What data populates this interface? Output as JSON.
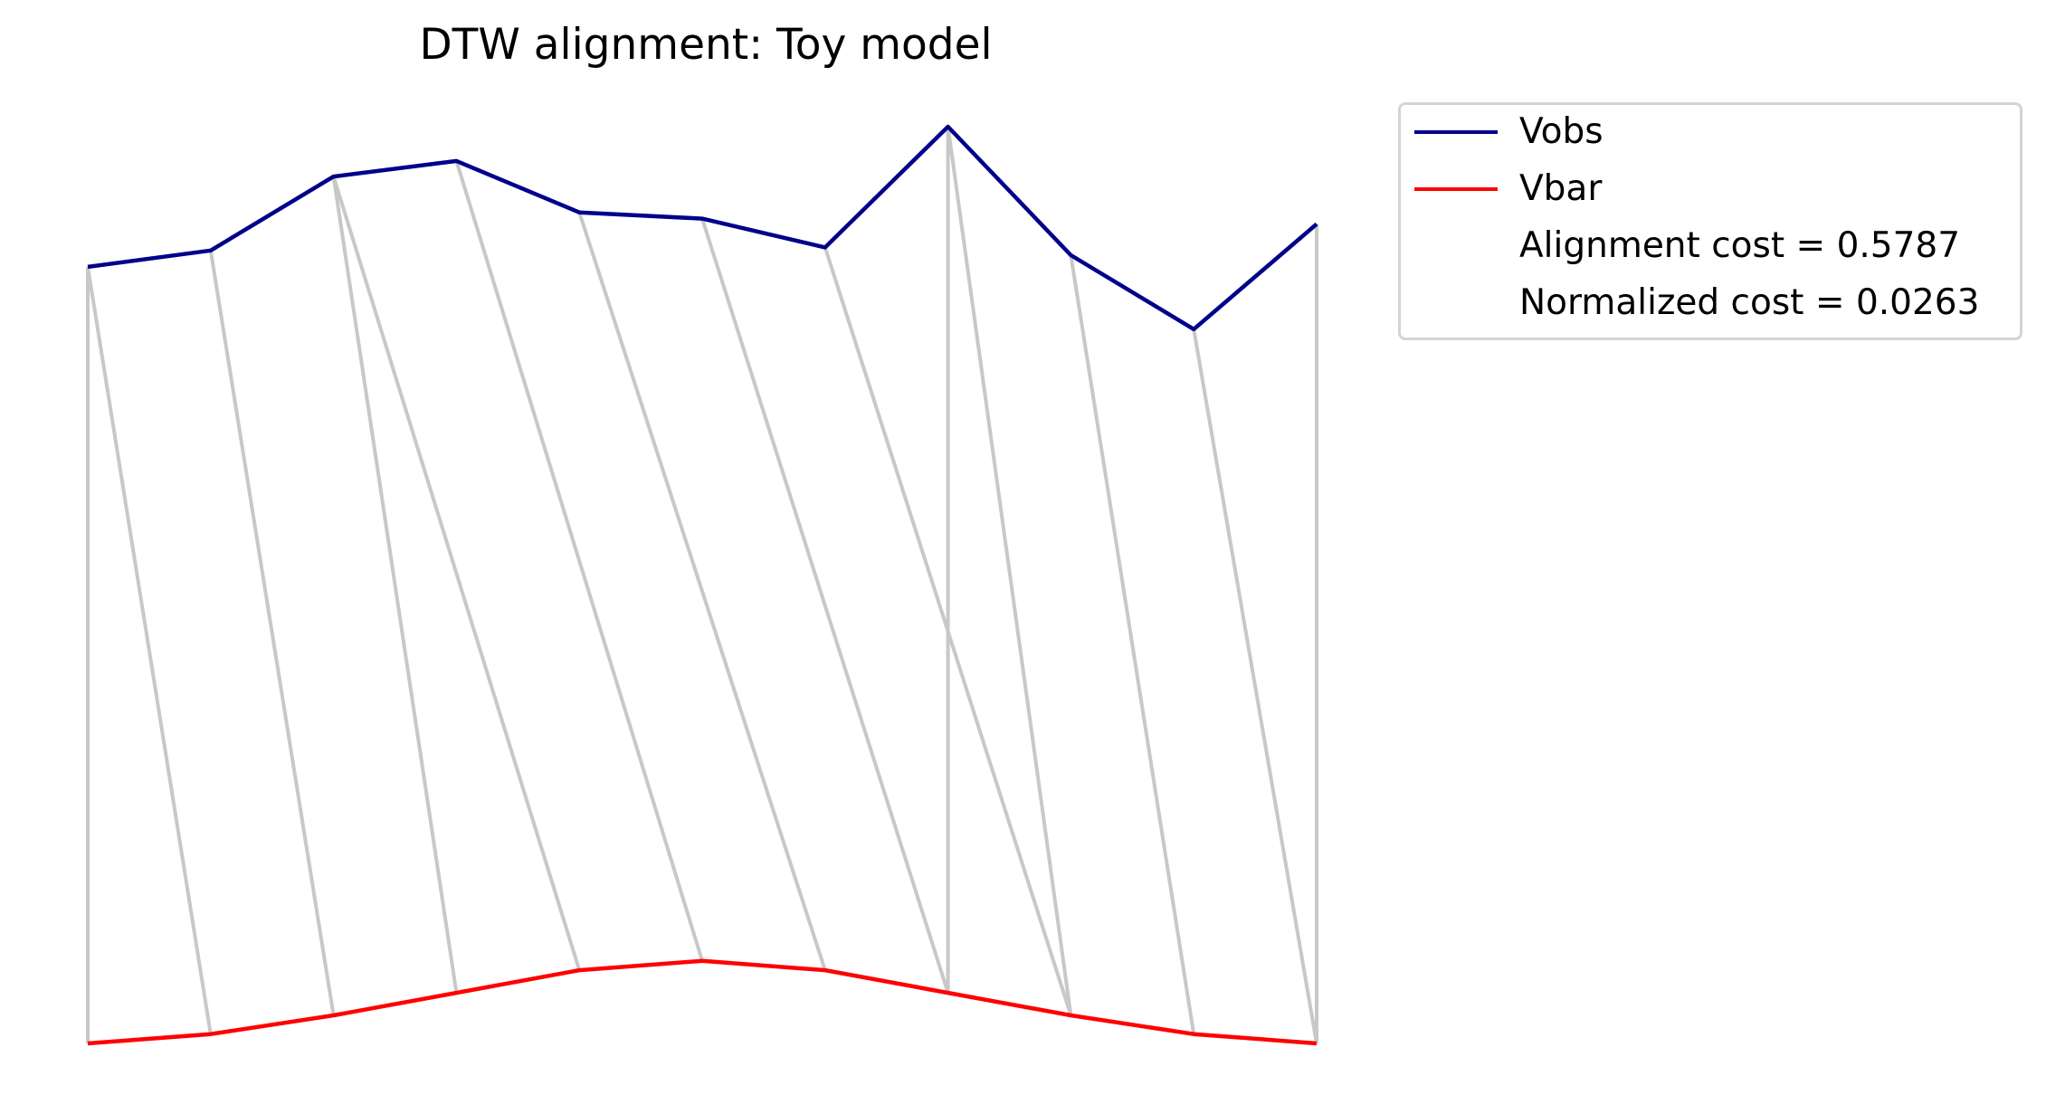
{
  "chart_data": {
    "type": "line",
    "title": "DTW alignment: Toy model",
    "xlabel": "",
    "ylabel": "",
    "axes_visible": false,
    "grid": false,
    "legend_position": "outside upper right",
    "x": [
      0,
      1,
      2,
      3,
      4,
      5,
      6,
      7,
      8,
      9,
      10
    ],
    "series": [
      {
        "name": "Vobs",
        "color": "#00008b",
        "values": [
          0.773,
          0.794,
          0.889,
          0.909,
          0.843,
          0.835,
          0.798,
          0.953,
          0.788,
          0.693,
          0.828
        ]
      },
      {
        "name": "Vbar",
        "color": "#ff0000",
        "values": [
          -0.224,
          -0.212,
          -0.188,
          -0.159,
          -0.13,
          -0.118,
          -0.13,
          -0.159,
          -0.188,
          -0.212,
          -0.224
        ]
      }
    ],
    "alignment_color": "#c8c8c8",
    "alignment_pairs": [
      [
        0,
        0
      ],
      [
        0,
        1
      ],
      [
        1,
        2
      ],
      [
        2,
        3
      ],
      [
        2,
        4
      ],
      [
        3,
        5
      ],
      [
        4,
        6
      ],
      [
        5,
        7
      ],
      [
        6,
        8
      ],
      [
        7,
        7
      ],
      [
        7,
        8
      ],
      [
        8,
        9
      ],
      [
        9,
        10
      ],
      [
        10,
        10
      ]
    ],
    "annotations": [
      "Alignment cost = 0.5787",
      "Normalized cost = 0.0263"
    ]
  },
  "legend": {
    "entries": [
      {
        "label": "Vobs",
        "color": "#00008b"
      },
      {
        "label": "Vbar",
        "color": "#ff0000"
      },
      {
        "label": "Alignment cost = 0.5787"
      },
      {
        "label": "Normalized cost = 0.0263"
      }
    ]
  }
}
